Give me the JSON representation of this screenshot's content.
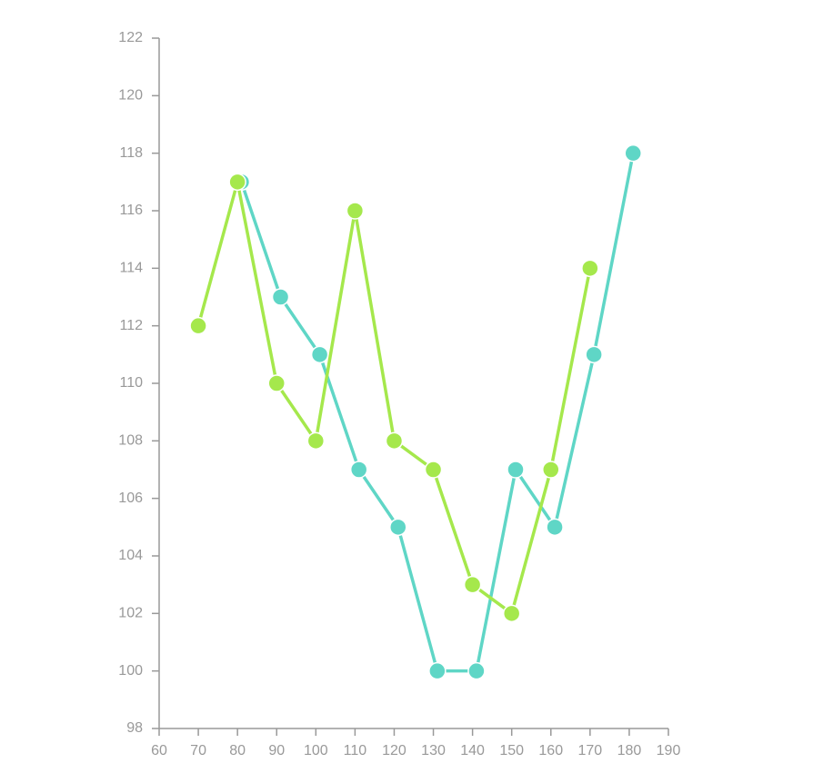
{
  "chart_data": {
    "type": "line",
    "xlim": [
      60,
      190
    ],
    "xticks": [
      60,
      70,
      80,
      90,
      100,
      110,
      120,
      130,
      140,
      150,
      160,
      170,
      180,
      190
    ],
    "ylim": [
      98,
      122
    ],
    "yticks": [
      98,
      100,
      102,
      104,
      106,
      108,
      110,
      112,
      114,
      116,
      118,
      120,
      122
    ],
    "grid": false,
    "series": [
      {
        "color": "#5fd6c6",
        "x": [
          81,
          91,
          101,
          111,
          121,
          131,
          141,
          151,
          161,
          171,
          181
        ],
        "values": [
          117,
          113,
          111,
          107,
          105,
          100,
          100,
          107,
          105,
          111,
          118
        ]
      },
      {
        "color": "#a5e84c",
        "x": [
          70,
          80,
          90,
          100,
          110,
          120,
          130,
          140,
          150,
          160,
          170
        ],
        "values": [
          112,
          117,
          110,
          108,
          116,
          108,
          107,
          103,
          102,
          107,
          114
        ]
      }
    ]
  }
}
